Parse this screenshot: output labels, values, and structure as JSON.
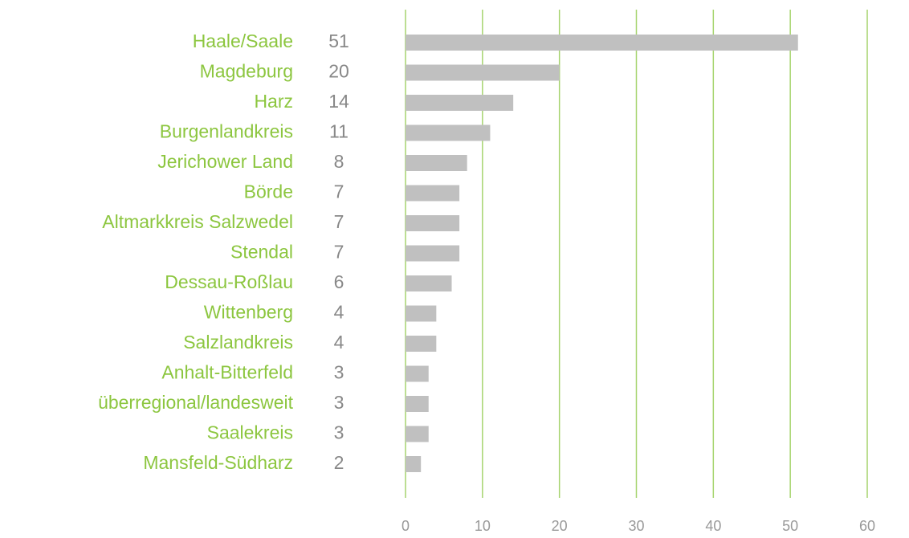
{
  "chart_data": {
    "type": "bar",
    "orientation": "horizontal",
    "categories": [
      "Haale/Saale",
      "Magdeburg",
      "Harz",
      "Burgenlandkreis",
      "Jerichower Land",
      "Börde",
      "Altmarkkreis Salzwedel",
      "Stendal",
      "Dessau-Roßlau",
      "Wittenberg",
      "Salzlandkreis",
      "Anhalt-Bitterfeld",
      "überregional/landesweit",
      "Saalekreis",
      "Mansfeld-Südharz"
    ],
    "values": [
      51,
      20,
      14,
      11,
      8,
      7,
      7,
      7,
      6,
      4,
      4,
      3,
      3,
      3,
      2
    ],
    "color": "#c0c0c0",
    "label_color": "#8cc63f",
    "grid_color": "#a6d46e",
    "xlim": [
      0,
      60
    ],
    "xticks": [
      0,
      10,
      20,
      30,
      40,
      50,
      60
    ],
    "grid": true
  }
}
